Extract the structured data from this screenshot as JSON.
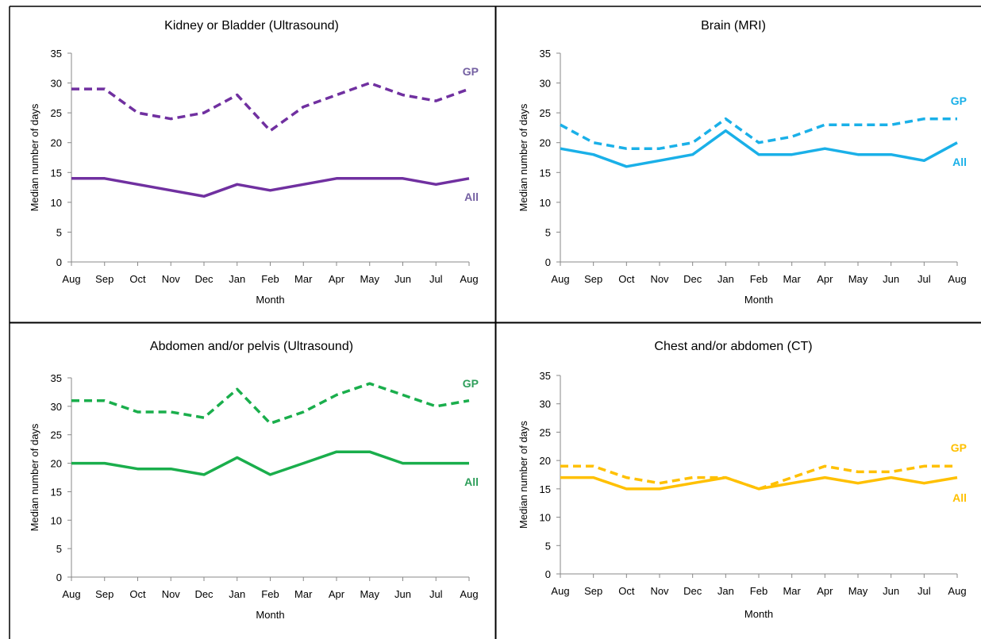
{
  "chart_data": [
    {
      "type": "line",
      "title": "Kidney or Bladder (Ultrasound)",
      "xlabel": "Month",
      "ylabel": "Median number of days",
      "ylim": [
        0,
        35
      ],
      "yticks": [
        "0",
        "5",
        "10",
        "15",
        "20",
        "25",
        "30",
        "35"
      ],
      "categories": [
        "Aug",
        "Sep",
        "Oct",
        "Nov",
        "Dec",
        "Jan",
        "Feb",
        "Mar",
        "Apr",
        "May",
        "Jun",
        "Jul",
        "Aug"
      ],
      "color": "#7030a0",
      "label_color": "#7460a2",
      "grid": false,
      "series": [
        {
          "name": "GP",
          "style": "dashed",
          "values": [
            29,
            29,
            25,
            24,
            25,
            28,
            22,
            26,
            28,
            30,
            28,
            27,
            29
          ]
        },
        {
          "name": "All",
          "style": "solid",
          "values": [
            14,
            14,
            13,
            12,
            11,
            13,
            12,
            13,
            14,
            14,
            14,
            13,
            14
          ]
        }
      ]
    },
    {
      "type": "line",
      "title": "Brain (MRI)",
      "xlabel": "Month",
      "ylabel": "Median number of days",
      "ylim": [
        0,
        35
      ],
      "yticks": [
        "0",
        "5",
        "10",
        "15",
        "20",
        "25",
        "30",
        "35"
      ],
      "categories": [
        "Aug",
        "Sep",
        "Oct",
        "Nov",
        "Dec",
        "Jan",
        "Feb",
        "Mar",
        "Apr",
        "May",
        "Jun",
        "Jul",
        "Aug"
      ],
      "color": "#1ab0e8",
      "label_color": "#1ab0e8",
      "grid": false,
      "series": [
        {
          "name": "GP",
          "style": "dashed",
          "values": [
            23,
            20,
            19,
            19,
            20,
            24,
            20,
            21,
            23,
            23,
            23,
            24,
            24
          ]
        },
        {
          "name": "All",
          "style": "solid",
          "values": [
            19,
            18,
            16,
            17,
            18,
            22,
            18,
            18,
            19,
            18,
            18,
            17,
            20
          ]
        }
      ]
    },
    {
      "type": "line",
      "title": "Abdomen and/or pelvis (Ultrasound)",
      "xlabel": "Month",
      "ylabel": "Median number of days",
      "ylim": [
        0,
        35
      ],
      "yticks": [
        "0",
        "5",
        "10",
        "15",
        "20",
        "25",
        "30",
        "35"
      ],
      "categories": [
        "Aug",
        "Sep",
        "Oct",
        "Nov",
        "Dec",
        "Jan",
        "Feb",
        "Mar",
        "Apr",
        "May",
        "Jun",
        "Jul",
        "Aug"
      ],
      "color": "#1aae4c",
      "label_color": "#2e9e5a",
      "grid": false,
      "series": [
        {
          "name": "GP",
          "style": "dashed",
          "values": [
            31,
            31,
            29,
            29,
            28,
            33,
            27,
            29,
            32,
            34,
            32,
            30,
            31
          ]
        },
        {
          "name": "All",
          "style": "solid",
          "values": [
            20,
            20,
            19,
            19,
            18,
            21,
            18,
            20,
            22,
            22,
            20,
            20,
            20
          ]
        }
      ]
    },
    {
      "type": "line",
      "title": "Chest and/or abdomen (CT)",
      "xlabel": "Month",
      "ylabel": "Median number of days",
      "ylim": [
        0,
        35
      ],
      "yticks": [
        "0",
        "5",
        "10",
        "15",
        "20",
        "25",
        "30",
        "35"
      ],
      "categories": [
        "Aug",
        "Sep",
        "Oct",
        "Nov",
        "Dec",
        "Jan",
        "Feb",
        "Mar",
        "Apr",
        "May",
        "Jun",
        "Jul",
        "Aug"
      ],
      "color": "#ffc000",
      "label_color": "#ffc000",
      "grid": false,
      "series": [
        {
          "name": "GP",
          "style": "dashed",
          "values": [
            19,
            19,
            17,
            16,
            17,
            17,
            15,
            17,
            19,
            18,
            18,
            19,
            19
          ]
        },
        {
          "name": "All",
          "style": "solid",
          "values": [
            17,
            17,
            15,
            15,
            16,
            17,
            15,
            16,
            17,
            16,
            17,
            16,
            17
          ]
        }
      ]
    }
  ]
}
